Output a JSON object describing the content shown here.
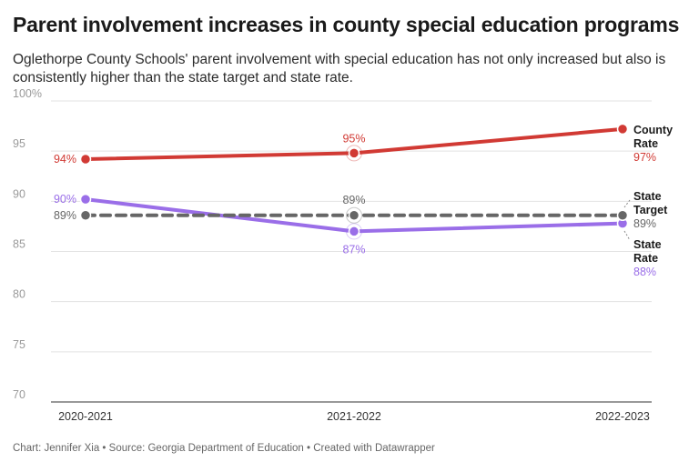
{
  "header": {
    "title": "Parent involvement increases in county special education programs",
    "subtitle": "Oglethorpe County Schools' parent involvement with special education has not only increased but also is consistently higher than the state target and state rate."
  },
  "footer": {
    "credit": "Chart: Jennifer Xia • Source: Georgia Department of Education • Created with Datawrapper"
  },
  "colors": {
    "county": "#d13a34",
    "state_rate": "#9a6ee8",
    "state_target": "#666666",
    "grid": "#e3e3e3"
  },
  "chart_data": {
    "type": "line",
    "categories": [
      "2020-2021",
      "2021-2022",
      "2022-2023"
    ],
    "ylim": [
      70,
      100
    ],
    "yticks": [
      70,
      75,
      80,
      85,
      90,
      95,
      100
    ],
    "ytick_labels": [
      "70",
      "75",
      "80",
      "85",
      "90",
      "95",
      "100%"
    ],
    "grid": true,
    "series": [
      {
        "key": "county",
        "name": "County Rate",
        "name_lines": [
          "County",
          "Rate"
        ],
        "values": [
          94.2,
          94.8,
          97.2
        ],
        "labels": [
          "94%",
          "95%",
          "97%"
        ],
        "style": "solid"
      },
      {
        "key": "state_rate",
        "name": "State Rate",
        "name_lines": [
          "State",
          "Rate"
        ],
        "values": [
          90.2,
          87.0,
          87.8
        ],
        "labels": [
          "90%",
          "87%",
          "88%"
        ],
        "style": "solid"
      },
      {
        "key": "state_target",
        "name": "State Target",
        "name_lines": [
          "State",
          "Target"
        ],
        "values": [
          88.6,
          88.6,
          88.6
        ],
        "labels": [
          "89%",
          "89%",
          "89%"
        ],
        "style": "dashed"
      }
    ]
  }
}
